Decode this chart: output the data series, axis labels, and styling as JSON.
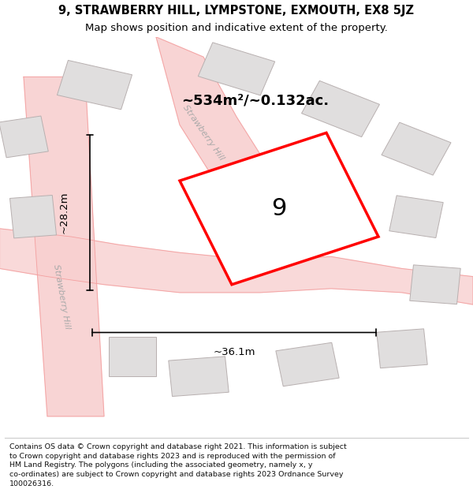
{
  "title_line1": "9, STRAWBERRY HILL, LYMPSTONE, EXMOUTH, EX8 5JZ",
  "title_line2": "Map shows position and indicative extent of the property.",
  "footer_wrapped": "Contains OS data © Crown copyright and database right 2021. This information is subject\nto Crown copyright and database rights 2023 and is reproduced with the permission of\nHM Land Registry. The polygons (including the associated geometry, namely x, y\nco-ordinates) are subject to Crown copyright and database rights 2023 Ordnance Survey\n100026316.",
  "area_label": "~534m²/~0.132ac.",
  "number_label": "9",
  "width_label": "~36.1m",
  "height_label": "~28.2m",
  "map_bg": "#f2f0f0",
  "road_color": "#f4a0a0",
  "plot_color": "#ff0000",
  "plot_fill": "#ffffff",
  "street_label1": "Strawberry Hill",
  "street_label2": "Strawberry Hill"
}
